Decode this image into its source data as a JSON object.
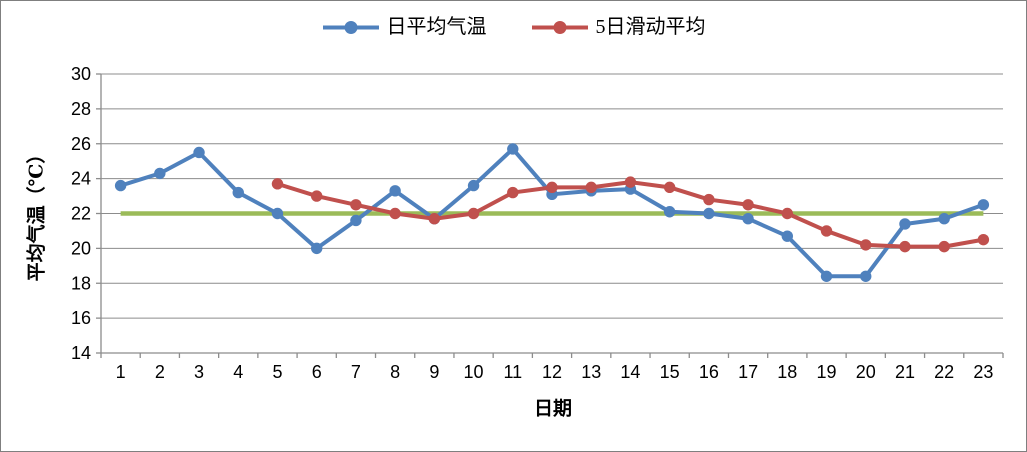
{
  "chart_data": {
    "type": "line",
    "title": "",
    "xlabel": "日期",
    "ylabel": "平均气温（℃）",
    "x": [
      1,
      2,
      3,
      4,
      5,
      6,
      7,
      8,
      9,
      10,
      11,
      12,
      13,
      14,
      15,
      16,
      17,
      18,
      19,
      20,
      21,
      22,
      23
    ],
    "ylim": [
      14,
      30
    ],
    "ytick_step": 2,
    "grid": "horizontal-only",
    "legend_position": "top-center",
    "series": [
      {
        "name": "日平均气温",
        "color": "#4F81BD",
        "marker": "circle",
        "values": [
          23.6,
          24.3,
          25.5,
          23.2,
          22.0,
          20.0,
          21.6,
          23.3,
          21.7,
          23.6,
          25.7,
          23.1,
          23.3,
          23.4,
          22.1,
          22.0,
          21.7,
          20.7,
          18.4,
          18.4,
          21.4,
          21.7,
          22.5
        ]
      },
      {
        "name": "5日滑动平均",
        "color": "#C0504D",
        "marker": "circle",
        "values": [
          null,
          null,
          null,
          null,
          23.7,
          23.0,
          22.5,
          22.0,
          21.7,
          22.0,
          23.2,
          23.5,
          23.5,
          23.8,
          23.5,
          22.8,
          22.5,
          22.0,
          21.0,
          20.2,
          20.1,
          20.1,
          20.5
        ]
      }
    ],
    "reference_line": {
      "value": 22,
      "color": "#9BBB59"
    }
  },
  "style_colors": {
    "axis": "#8C8C8C",
    "gridline": "#8C8C8C",
    "text": "#000000",
    "background": "#FFFFFF",
    "frame_border": "#7F7F7F"
  }
}
